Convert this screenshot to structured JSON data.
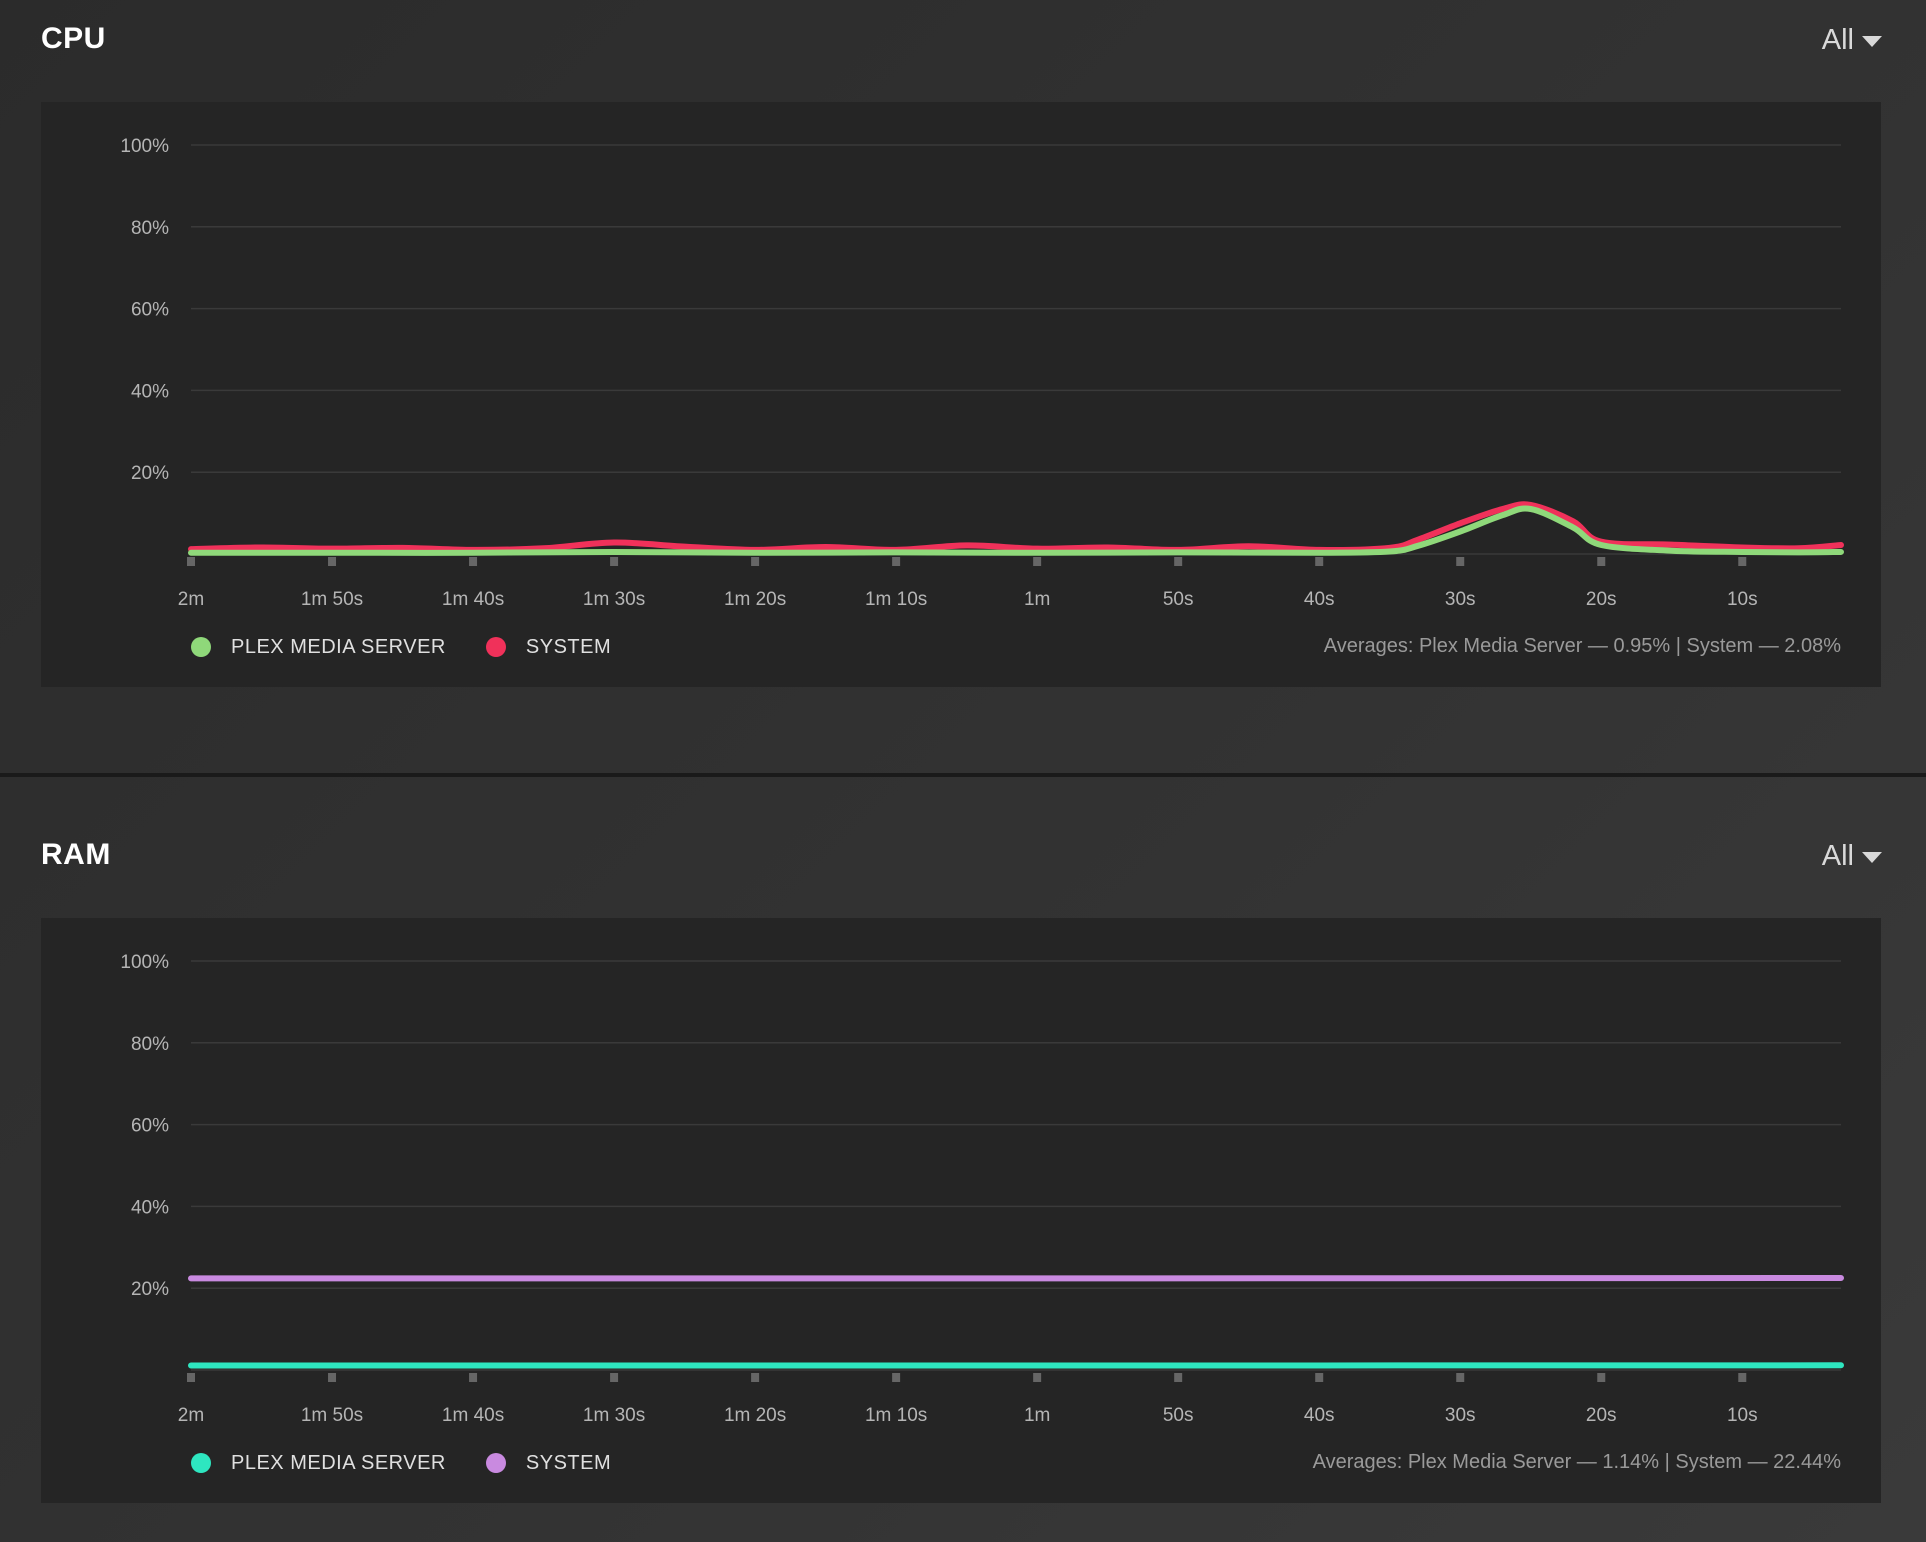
{
  "cpu": {
    "title": "CPU",
    "dropdown": "All",
    "legend": [
      {
        "label": "PLEX MEDIA SERVER",
        "color": "#8fd87a"
      },
      {
        "label": "SYSTEM",
        "color": "#f0315a"
      }
    ],
    "averages": "Averages: Plex Media Server — 0.95% | System — 2.08%"
  },
  "ram": {
    "title": "RAM",
    "dropdown": "All",
    "legend": [
      {
        "label": "PLEX MEDIA SERVER",
        "color": "#2ee6c0"
      },
      {
        "label": "SYSTEM",
        "color": "#c98ae0"
      }
    ],
    "averages": "Averages: Plex Media Server — 1.14% | System — 22.44%"
  },
  "chart_data": [
    {
      "type": "line",
      "title": "CPU",
      "ylim": [
        0,
        100
      ],
      "y_ticks": [
        "100%",
        "80%",
        "60%",
        "40%",
        "20%"
      ],
      "x_tick_labels": [
        "2m",
        "1m 50s",
        "1m 40s",
        "1m 30s",
        "1m 20s",
        "1m 10s",
        "1m",
        "50s",
        "40s",
        "30s",
        "20s",
        "10s"
      ],
      "xlim": [
        120,
        3
      ],
      "grid": true,
      "series": [
        {
          "name": "SYSTEM",
          "color": "#f0315a",
          "x": [
            120,
            115,
            110,
            105,
            100,
            95,
            90,
            85,
            80,
            75,
            70,
            65,
            60,
            55,
            50,
            45,
            40,
            35,
            33,
            30,
            27,
            25,
            22,
            20,
            15,
            10,
            6,
            3
          ],
          "values": [
            1.2,
            1.6,
            1.3,
            1.5,
            1.0,
            1.4,
            2.8,
            1.8,
            1.0,
            1.7,
            1.0,
            2.1,
            1.3,
            1.6,
            1.0,
            1.9,
            1.0,
            1.5,
            3.5,
            7.5,
            11.0,
            12.0,
            8.0,
            3.0,
            2.3,
            1.6,
            1.4,
            2.2
          ]
        },
        {
          "name": "PLEX MEDIA SERVER",
          "color": "#8fd87a",
          "x": [
            120,
            110,
            100,
            90,
            80,
            70,
            60,
            50,
            40,
            35,
            33,
            30,
            27,
            25,
            22,
            20,
            15,
            10,
            6,
            3
          ],
          "values": [
            0.3,
            0.3,
            0.3,
            0.5,
            0.3,
            0.4,
            0.3,
            0.4,
            0.3,
            0.6,
            2.0,
            5.5,
            9.5,
            11.0,
            6.5,
            2.2,
            0.8,
            0.5,
            0.4,
            0.5
          ]
        }
      ]
    },
    {
      "type": "line",
      "title": "RAM",
      "ylim": [
        0,
        100
      ],
      "y_ticks": [
        "100%",
        "80%",
        "60%",
        "40%",
        "20%"
      ],
      "x_tick_labels": [
        "2m",
        "1m 50s",
        "1m 40s",
        "1m 30s",
        "1m 20s",
        "1m 10s",
        "1m",
        "50s",
        "40s",
        "30s",
        "20s",
        "10s"
      ],
      "xlim": [
        120,
        3
      ],
      "grid": true,
      "series": [
        {
          "name": "SYSTEM",
          "color": "#c98ae0",
          "x": [
            120,
            60,
            3
          ],
          "values": [
            22.4,
            22.4,
            22.5
          ]
        },
        {
          "name": "PLEX MEDIA SERVER",
          "color": "#2ee6c0",
          "x": [
            120,
            60,
            3
          ],
          "values": [
            1.1,
            1.1,
            1.15
          ]
        }
      ]
    }
  ]
}
